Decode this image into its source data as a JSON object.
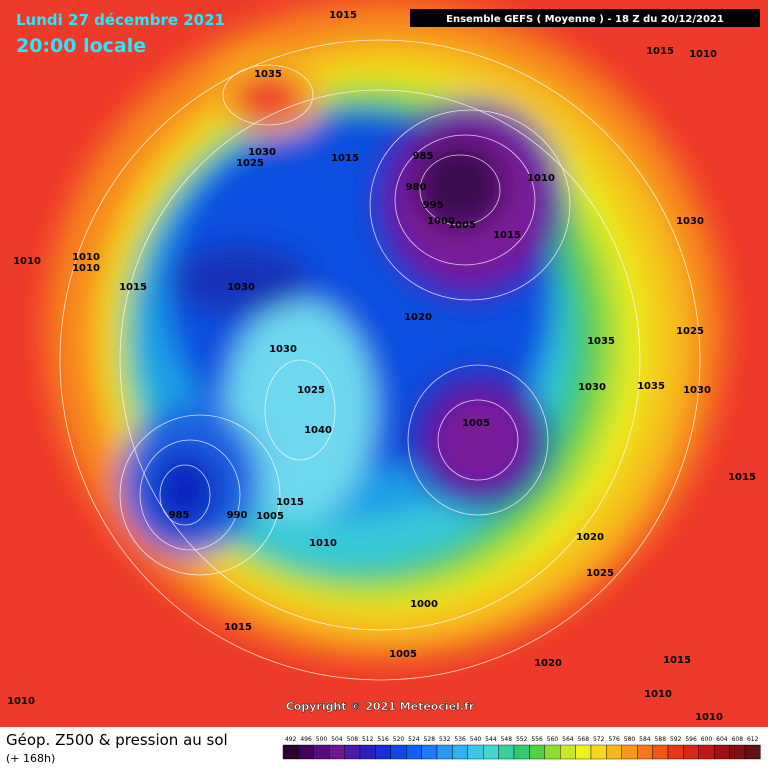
{
  "header": {
    "date": "Lundi 27 décembre 2021",
    "time": "20:00 locale",
    "run": "Ensemble GEFS  ( Moyenne )  -  18 Z du 20/12/2021"
  },
  "copyright": "Copyright © 2021 Meteociel.fr",
  "legend": {
    "title": "Géop. Z500 & pression au sol",
    "lead": "(+ 168h)",
    "ticks": [
      492,
      496,
      500,
      504,
      508,
      512,
      516,
      520,
      524,
      528,
      532,
      536,
      540,
      544,
      548,
      552,
      556,
      560,
      564,
      568,
      572,
      576,
      580,
      584,
      588,
      592,
      596,
      600,
      604,
      608,
      612
    ]
  },
  "isobar_labels": [
    "1015",
    "1015",
    "1010",
    "1035",
    "1030",
    "1025",
    "1015",
    "985",
    "980",
    "1010",
    "995",
    "1000",
    "1005",
    "1015",
    "1030",
    "1010",
    "1010",
    "1010",
    "1015",
    "1030",
    "1020",
    "1025",
    "1035",
    "1030",
    "1035",
    "1030",
    "1030",
    "1025",
    "1040",
    "1005",
    "1015",
    "985",
    "1015",
    "990",
    "1005",
    "1010",
    "1020",
    "1025",
    "1000",
    "1015",
    "1005",
    "1020",
    "1015",
    "1010",
    "1010",
    "1010"
  ]
}
